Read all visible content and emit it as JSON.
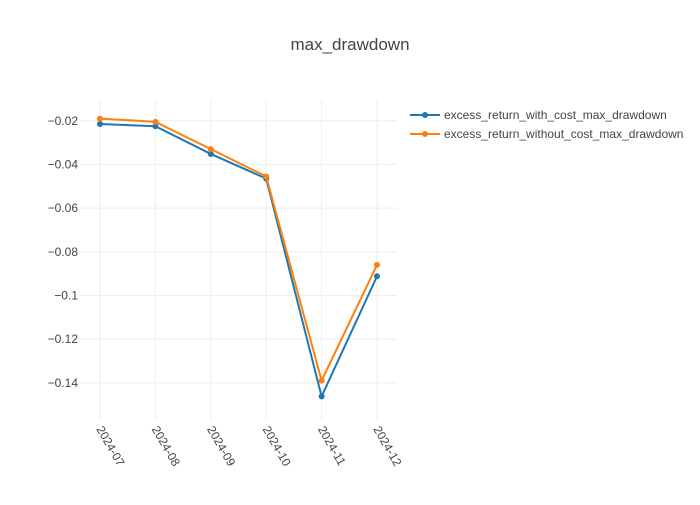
{
  "chart_data": {
    "type": "line",
    "title": "max_drawdown",
    "x": [
      "2024-07",
      "2024-08",
      "2024-09",
      "2024-10",
      "2024-11",
      "2024-12"
    ],
    "series": [
      {
        "name": "excess_return_with_cost_max_drawdown",
        "color": "#1f77b4",
        "values": [
          -0.0215,
          -0.0225,
          -0.0352,
          -0.0465,
          -0.1462,
          -0.0912
        ]
      },
      {
        "name": "excess_return_without_cost_max_drawdown",
        "color": "#ff7f0e",
        "values": [
          -0.019,
          -0.0205,
          -0.033,
          -0.0455,
          -0.139,
          -0.086
        ]
      }
    ],
    "y_ticks": [
      -0.02,
      -0.04,
      -0.06,
      -0.08,
      -0.1,
      -0.12,
      -0.14
    ],
    "y_tick_labels": [
      "−0.02",
      "−0.04",
      "−0.06",
      "−0.08",
      "−0.1",
      "−0.12",
      "−0.14"
    ],
    "ylim": [
      -0.157,
      -0.0105
    ],
    "grid": true,
    "legend_position": "top-right"
  }
}
